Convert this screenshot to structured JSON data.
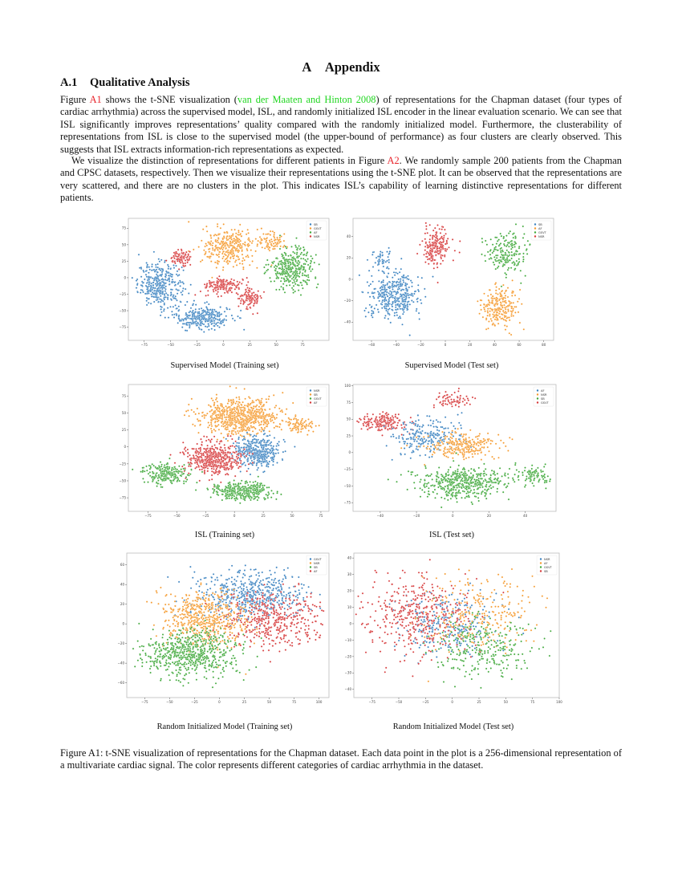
{
  "document": {
    "section_number": "A",
    "section_title": "Appendix",
    "subsection_number": "A.1",
    "subsection_title": "Qualitative Analysis",
    "paragraph1": {
      "part1": "Figure ",
      "ref1": "A1",
      "part2": " shows the t-SNE visualization (",
      "cite": "van der Maaten and Hinton 2008",
      "part3": ") of representations for the Chapman dataset (four types of cardiac arrhythmia) across the supervised model, ISL, and randomly initialized ISL encoder in the linear evaluation scenario. We can see that ISL significantly improves representations’ quality compared with the randomly initialized model. Furthermore, the clusterability of representations from ISL is close to the supervised model (the upper-bound of performance) as four clusters are clearly observed. This suggests that ISL extracts information-rich representations as expected."
    },
    "paragraph2": {
      "part1": "We visualize the distinction of representations for different patients in Figure ",
      "ref1": "A2",
      "part2": ". We randomly sample 200 patients from the Chapman and CPSC datasets, respectively. Then we visualize their representations using the t-SNE plot. It can be observed that the representations are very scattered, and there are no clusters in the plot. This indicates ISL’s capability of learning distinctive representations for different patients."
    },
    "figure_caption": "Figure A1: t-SNE visualization of representations for the Chapman dataset. Each data point in the plot is a 256-dimensional representation of a multivariate cardiac signal. The color represents different categories of cardiac arrhythmia in the dataset.",
    "colors": {
      "blue": "#3a82c0",
      "orange": "#f59a2e",
      "green": "#3fa83a",
      "red": "#d6393a"
    }
  },
  "chart_data": [
    {
      "type": "scatter",
      "title": "Supervised Model (Training set)",
      "legend": [
        "SB",
        "GSVT",
        "AF",
        "NSR"
      ],
      "legend_colors": [
        "#3a82c0",
        "#f59a2e",
        "#3fa83a",
        "#d6393a"
      ],
      "xlim": [
        -90,
        100
      ],
      "ylim": [
        -95,
        90
      ],
      "xticks": [
        -75,
        -50,
        -25,
        0,
        25,
        50,
        75
      ],
      "yticks": [
        -75,
        -50,
        -25,
        0,
        25,
        50,
        75
      ],
      "clusters": [
        {
          "label": "SB",
          "color": "#3a82c0",
          "cx": -60,
          "cy": -10,
          "sx": 14,
          "sy": 22,
          "n": 360
        },
        {
          "label": "SB",
          "color": "#3a82c0",
          "cx": -20,
          "cy": -60,
          "sx": 18,
          "sy": 12,
          "n": 300
        },
        {
          "label": "GSVT",
          "color": "#f59a2e",
          "cx": 5,
          "cy": 45,
          "sx": 16,
          "sy": 20,
          "n": 320
        },
        {
          "label": "GSVT",
          "color": "#f59a2e",
          "cx": 45,
          "cy": 55,
          "sx": 10,
          "sy": 10,
          "n": 90
        },
        {
          "label": "AF",
          "color": "#3fa83a",
          "cx": 65,
          "cy": 15,
          "sx": 14,
          "sy": 20,
          "n": 340
        },
        {
          "label": "NSR",
          "color": "#d6393a",
          "cx": -40,
          "cy": 30,
          "sx": 7,
          "sy": 7,
          "n": 90
        },
        {
          "label": "NSR",
          "color": "#d6393a",
          "cx": 0,
          "cy": -12,
          "sx": 12,
          "sy": 8,
          "n": 160
        },
        {
          "label": "NSR",
          "color": "#d6393a",
          "cx": 25,
          "cy": -30,
          "sx": 7,
          "sy": 11,
          "n": 110
        }
      ]
    },
    {
      "type": "scatter",
      "title": "Supervised Model (Test set)",
      "legend": [
        "SB",
        "AF",
        "GSVT",
        "NSR"
      ],
      "legend_colors": [
        "#3a82c0",
        "#f59a2e",
        "#3fa83a",
        "#d6393a"
      ],
      "xlim": [
        -75,
        88
      ],
      "ylim": [
        -57,
        57
      ],
      "xticks": [
        -60,
        -40,
        -20,
        0,
        20,
        40,
        60,
        80
      ],
      "yticks": [
        -40,
        -20,
        0,
        20,
        40
      ],
      "clusters": [
        {
          "label": "SB",
          "color": "#3a82c0",
          "cx": -42,
          "cy": -15,
          "sx": 14,
          "sy": 14,
          "n": 380
        },
        {
          "label": "SB",
          "color": "#3a82c0",
          "cx": -52,
          "cy": 18,
          "sx": 6,
          "sy": 6,
          "n": 50
        },
        {
          "label": "NSR",
          "color": "#d6393a",
          "cx": -8,
          "cy": 30,
          "sx": 7,
          "sy": 12,
          "n": 200
        },
        {
          "label": "GSVT",
          "color": "#3fa83a",
          "cx": 50,
          "cy": 25,
          "sx": 11,
          "sy": 13,
          "n": 190
        },
        {
          "label": "AF",
          "color": "#f59a2e",
          "cx": 45,
          "cy": -25,
          "sx": 10,
          "sy": 12,
          "n": 230
        }
      ]
    },
    {
      "type": "scatter",
      "title": "ISL (Training set)",
      "legend": [
        "NSR",
        "SB",
        "GSVT",
        "AF"
      ],
      "legend_colors": [
        "#3a82c0",
        "#f59a2e",
        "#3fa83a",
        "#d6393a"
      ],
      "xlim": [
        -92,
        82
      ],
      "ylim": [
        -95,
        92
      ],
      "xticks": [
        -75,
        -50,
        -25,
        0,
        25,
        50,
        75
      ],
      "yticks": [
        -75,
        -50,
        -25,
        0,
        25,
        50,
        75
      ],
      "clusters": [
        {
          "label": "SB",
          "color": "#f59a2e",
          "cx": 5,
          "cy": 45,
          "sx": 22,
          "sy": 17,
          "n": 700
        },
        {
          "label": "SB",
          "color": "#f59a2e",
          "cx": 55,
          "cy": 32,
          "sx": 9,
          "sy": 7,
          "n": 90
        },
        {
          "label": "NSR",
          "color": "#3a82c0",
          "cx": 20,
          "cy": -8,
          "sx": 13,
          "sy": 15,
          "n": 420
        },
        {
          "label": "AF",
          "color": "#d6393a",
          "cx": -18,
          "cy": -18,
          "sx": 16,
          "sy": 16,
          "n": 520
        },
        {
          "label": "GSVT",
          "color": "#3fa83a",
          "cx": 5,
          "cy": -65,
          "sx": 16,
          "sy": 9,
          "n": 360
        },
        {
          "label": "GSVT",
          "color": "#3fa83a",
          "cx": -60,
          "cy": -40,
          "sx": 14,
          "sy": 10,
          "n": 220
        }
      ]
    },
    {
      "type": "scatter",
      "title": "ISL (Test set)",
      "legend": [
        "AF",
        "NSR",
        "SB",
        "GSVT"
      ],
      "legend_colors": [
        "#3a82c0",
        "#f59a2e",
        "#3fa83a",
        "#d6393a"
      ],
      "xlim": [
        -55,
        57
      ],
      "ylim": [
        -88,
        102
      ],
      "xticks": [
        -40,
        -20,
        0,
        20,
        40
      ],
      "yticks": [
        -75,
        -50,
        -25,
        0,
        25,
        50,
        75,
        100
      ],
      "clusters": [
        {
          "label": "GSVT",
          "color": "#d6393a",
          "cx": -38,
          "cy": 45,
          "sx": 9,
          "sy": 10,
          "n": 180
        },
        {
          "label": "GSVT",
          "color": "#d6393a",
          "cx": 0,
          "cy": 80,
          "sx": 8,
          "sy": 8,
          "n": 70
        },
        {
          "label": "AF",
          "color": "#3a82c0",
          "cx": -15,
          "cy": 25,
          "sx": 13,
          "sy": 20,
          "n": 230
        },
        {
          "label": "NSR",
          "color": "#f59a2e",
          "cx": 5,
          "cy": 10,
          "sx": 14,
          "sy": 12,
          "n": 260
        },
        {
          "label": "SB",
          "color": "#3fa83a",
          "cx": 5,
          "cy": -45,
          "sx": 17,
          "sy": 16,
          "n": 480
        },
        {
          "label": "SB",
          "color": "#3fa83a",
          "cx": 44,
          "cy": -35,
          "sx": 6,
          "sy": 10,
          "n": 90
        }
      ]
    },
    {
      "type": "scatter",
      "title": "Random Initialized Model (Training set)",
      "legend": [
        "GSVT",
        "NSR",
        "SB",
        "AF"
      ],
      "legend_colors": [
        "#3a82c0",
        "#f59a2e",
        "#3fa83a",
        "#d6393a"
      ],
      "xlim": [
        -93,
        110
      ],
      "ylim": [
        -75,
        72
      ],
      "xticks": [
        -75,
        -50,
        -25,
        0,
        25,
        50,
        75,
        100
      ],
      "yticks": [
        -60,
        -40,
        -20,
        0,
        20,
        40,
        60
      ],
      "clusters": [
        {
          "label": "GSVT",
          "color": "#3a82c0",
          "cx": 30,
          "cy": 30,
          "sx": 35,
          "sy": 16,
          "n": 560
        },
        {
          "label": "NSR",
          "color": "#f59a2e",
          "cx": -15,
          "cy": 5,
          "sx": 30,
          "sy": 18,
          "n": 560
        },
        {
          "label": "SB",
          "color": "#3fa83a",
          "cx": -30,
          "cy": -30,
          "sx": 32,
          "sy": 16,
          "n": 620
        },
        {
          "label": "AF",
          "color": "#d6393a",
          "cx": 55,
          "cy": 5,
          "sx": 35,
          "sy": 18,
          "n": 420
        }
      ]
    },
    {
      "type": "scatter",
      "title": "Random Initialized Model (Test set)",
      "legend": [
        "NSR",
        "AF",
        "GSVT",
        "SB"
      ],
      "legend_colors": [
        "#3a82c0",
        "#f59a2e",
        "#3fa83a",
        "#d6393a"
      ],
      "xlim": [
        -92,
        100
      ],
      "ylim": [
        -45,
        43
      ],
      "xticks": [
        -75,
        -50,
        -25,
        0,
        25,
        50,
        75,
        100
      ],
      "yticks": [
        -40,
        -30,
        -20,
        -10,
        0,
        10,
        20,
        30,
        40
      ],
      "clusters": [
        {
          "label": "NSR",
          "color": "#3a82c0",
          "cx": -5,
          "cy": 0,
          "sx": 30,
          "sy": 14,
          "n": 260
        },
        {
          "label": "AF",
          "color": "#f59a2e",
          "cx": 25,
          "cy": 5,
          "sx": 35,
          "sy": 15,
          "n": 260
        },
        {
          "label": "GSVT",
          "color": "#3fa83a",
          "cx": 25,
          "cy": -15,
          "sx": 33,
          "sy": 13,
          "n": 280
        },
        {
          "label": "SB",
          "color": "#d6393a",
          "cx": -35,
          "cy": 5,
          "sx": 35,
          "sy": 16,
          "n": 420
        }
      ]
    }
  ]
}
